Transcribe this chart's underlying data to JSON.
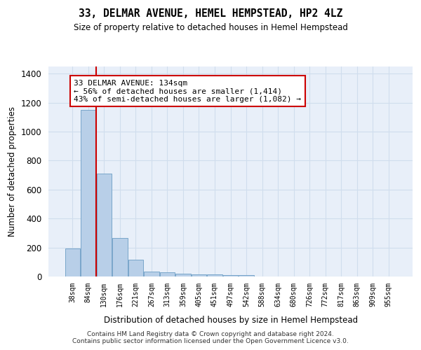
{
  "title": "33, DELMAR AVENUE, HEMEL HEMPSTEAD, HP2 4LZ",
  "subtitle": "Size of property relative to detached houses in Hemel Hempstead",
  "xlabel": "Distribution of detached houses by size in Hemel Hempstead",
  "ylabel": "Number of detached properties",
  "bar_values": [
    195,
    1150,
    710,
    265,
    115,
    33,
    28,
    18,
    14,
    13,
    12,
    10,
    0,
    0,
    0,
    0,
    0,
    0,
    0,
    0,
    0
  ],
  "bin_labels": [
    "38sqm",
    "84sqm",
    "130sqm",
    "176sqm",
    "221sqm",
    "267sqm",
    "313sqm",
    "359sqm",
    "405sqm",
    "451sqm",
    "497sqm",
    "542sqm",
    "588sqm",
    "634sqm",
    "680sqm",
    "726sqm",
    "772sqm",
    "817sqm",
    "863sqm",
    "909sqm",
    "955sqm"
  ],
  "bar_color": "#b8cfe8",
  "bar_edge_color": "#6b9dc4",
  "vline_x": 1.5,
  "vline_color": "#cc0000",
  "annotation_line1": "33 DELMAR AVENUE: 134sqm",
  "annotation_line2": "← 56% of detached houses are smaller (1,414)",
  "annotation_line3": "43% of semi-detached houses are larger (1,082) →",
  "annotation_box_color": "#ffffff",
  "annotation_box_edge": "#cc0000",
  "ylim": [
    0,
    1450
  ],
  "yticks": [
    0,
    200,
    400,
    600,
    800,
    1000,
    1200,
    1400
  ],
  "grid_color": "#d0dded",
  "bg_color": "#e8eff9",
  "footer_line1": "Contains HM Land Registry data © Crown copyright and database right 2024.",
  "footer_line2": "Contains public sector information licensed under the Open Government Licence v3.0."
}
